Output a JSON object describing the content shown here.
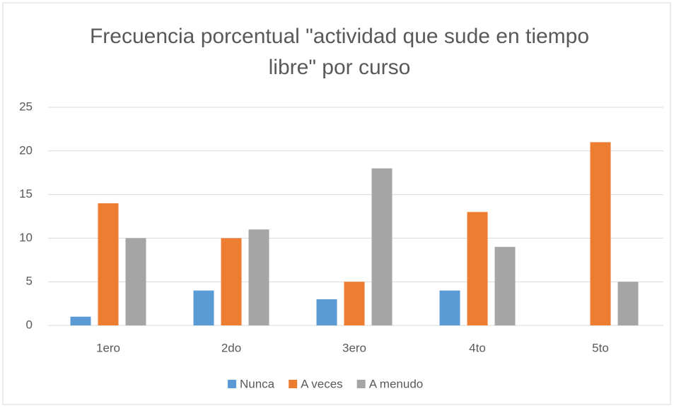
{
  "chart_data": {
    "type": "bar",
    "title": "Frecuencia porcentual \"actividad que sude en tiempo libre\" por curso",
    "categories": [
      "1ero",
      "2do",
      "3ero",
      "4to",
      "5to"
    ],
    "series": [
      {
        "name": "Nunca",
        "color": "#5b9bd5",
        "values": [
          1,
          4,
          3,
          4,
          0
        ]
      },
      {
        "name": "A veces",
        "color": "#ed7d31",
        "values": [
          14,
          10,
          5,
          13,
          21
        ]
      },
      {
        "name": "A menudo",
        "color": "#a5a5a5",
        "values": [
          10,
          11,
          18,
          9,
          5
        ]
      }
    ],
    "ylim": [
      0,
      25
    ],
    "yticks": [
      0,
      5,
      10,
      15,
      20,
      25
    ],
    "grid": true,
    "legend": "bottom"
  }
}
